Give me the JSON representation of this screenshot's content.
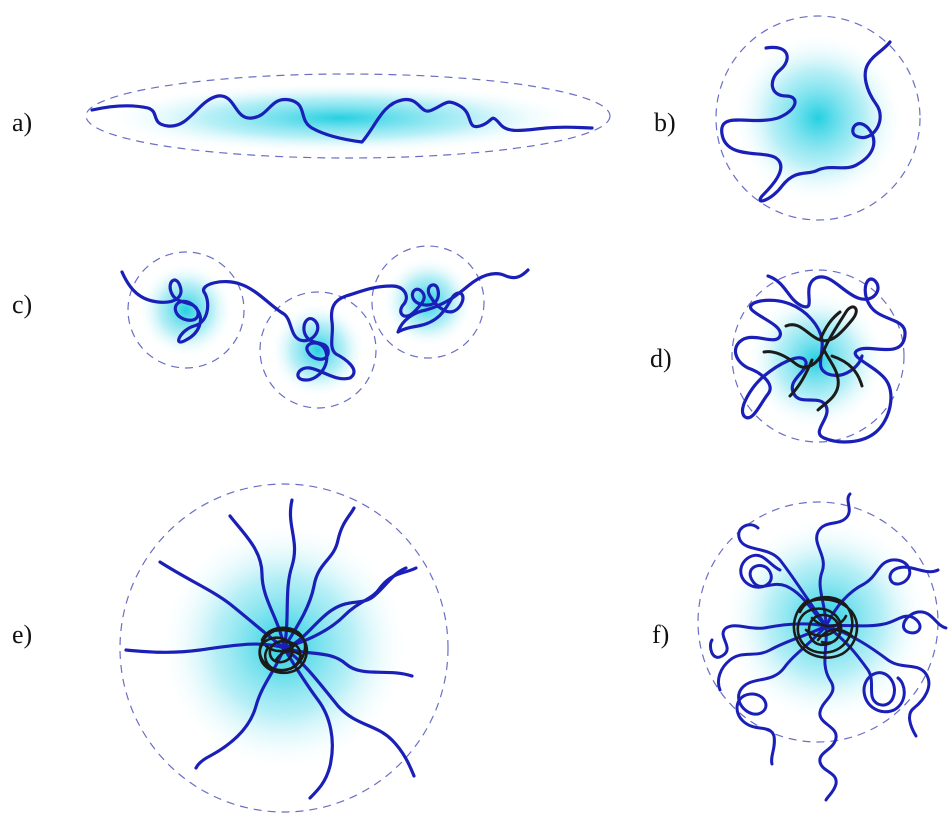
{
  "colors": {
    "chain_blue": "#1a1fb8",
    "core_black": "#1b1b1b",
    "halo_cyan": "#19cde0",
    "boundary_dash": "#6a6fc4"
  },
  "panels": [
    {
      "label": "a)"
    },
    {
      "label": "b)"
    },
    {
      "label": "c)"
    },
    {
      "label": "d)"
    },
    {
      "label": "e)"
    },
    {
      "label": "f)"
    }
  ]
}
